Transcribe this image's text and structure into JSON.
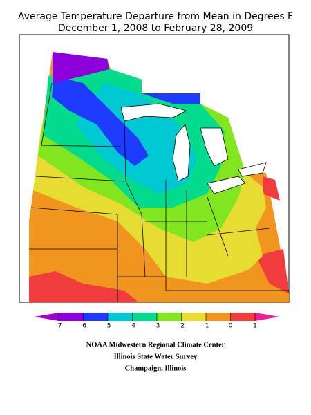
{
  "title_lines": [
    "Average Temperature Departure from Mean in Degrees F",
    "December 1, 2008 to February 28, 2009"
  ],
  "legend": {
    "ticks": [
      -7,
      -6,
      -5,
      -4,
      -3,
      -2,
      -1,
      0,
      1
    ],
    "colors": [
      "#a000c8",
      "#8c00dc",
      "#1e3cff",
      "#00c8d2",
      "#00dc8c",
      "#82e61e",
      "#e6dc32",
      "#f0961e",
      "#f03c3c",
      "#f01e96"
    ]
  },
  "footer": [
    "NOAA Midwestern Regional Climate Center",
    "Illinois State Water Survey",
    "Champaign, Illinois"
  ]
}
